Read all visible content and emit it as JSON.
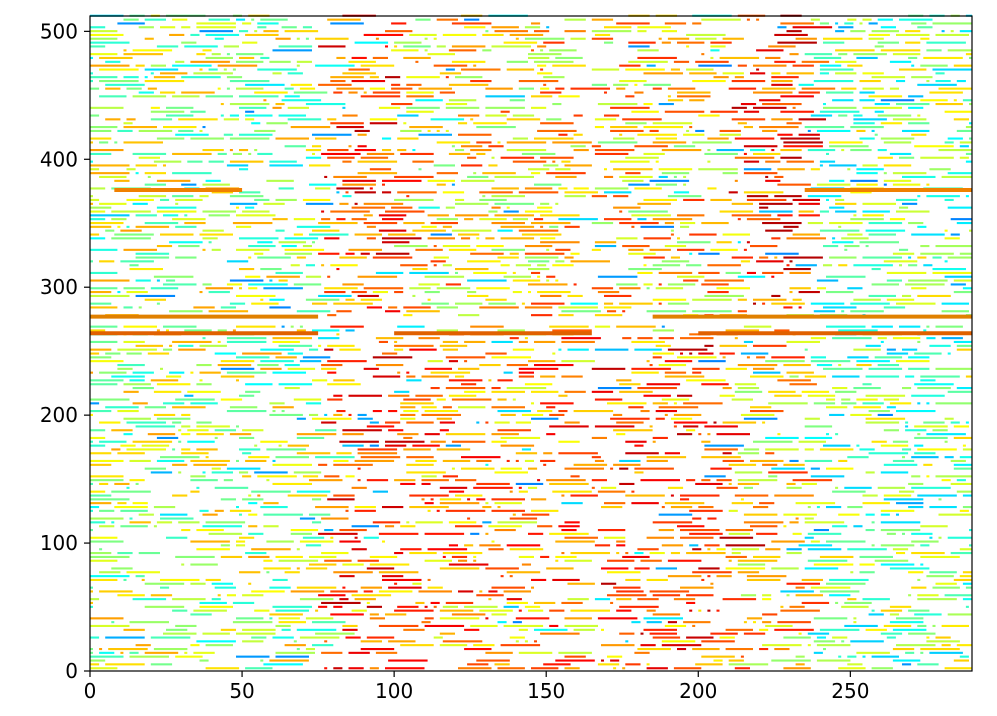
{
  "chart_data": {
    "type": "heatmap",
    "title": "",
    "xlabel": "",
    "ylabel": "",
    "xlim": [
      0,
      290
    ],
    "ylim": [
      0,
      512
    ],
    "xticks": [
      0,
      50,
      100,
      150,
      200,
      250
    ],
    "yticks": [
      0,
      100,
      200,
      300,
      400,
      500
    ],
    "grid": false,
    "legend": "none",
    "colormap": "jet",
    "background_color": "#ffffff",
    "columns": [
      {
        "x_range": [
          0,
          75
        ],
        "intensity": "low-medium",
        "dominant_colors": [
          "#f5f500",
          "#9cf06a",
          "#4fe0d0"
        ]
      },
      {
        "x_range": [
          75,
          100
        ],
        "intensity": "high",
        "dominant_colors": [
          "#e23000",
          "#f08000",
          "#f5f500"
        ]
      },
      {
        "x_range": [
          100,
          160
        ],
        "intensity": "medium-high",
        "dominant_colors": [
          "#e23000",
          "#f5c000",
          "#f5f500"
        ]
      },
      {
        "x_range": [
          165,
          210
        ],
        "intensity": "high",
        "dominant_colors": [
          "#d02000",
          "#f08000",
          "#f5f500"
        ]
      },
      {
        "x_range": [
          210,
          235
        ],
        "intensity": "high (upper rows)",
        "dominant_colors": [
          "#c01818",
          "#f08000"
        ]
      },
      {
        "x_range": [
          235,
          290
        ],
        "intensity": "low",
        "dominant_colors": [
          "#f5f500",
          "#9cf06a",
          "#1fa0ff"
        ]
      }
    ],
    "gaps": [
      {
        "x_range": [
          160,
          165
        ],
        "description": "near-empty vertical band"
      },
      {
        "y_range": [
          268,
          275
        ],
        "description": "near-empty horizontal band"
      }
    ],
    "horizontal_lines": [
      {
        "y": 264,
        "x_segments": [
          [
            0,
            75
          ],
          [
            100,
            165
          ],
          [
            200,
            290
          ]
        ],
        "color": "#e06000"
      },
      {
        "y": 277,
        "x_segments": [
          [
            0,
            75
          ],
          [
            185,
            290
          ]
        ],
        "color": "#e08000"
      },
      {
        "y": 376,
        "x_segments": [
          [
            8,
            50
          ],
          [
            235,
            290
          ]
        ],
        "color": "#f08000"
      }
    ]
  }
}
